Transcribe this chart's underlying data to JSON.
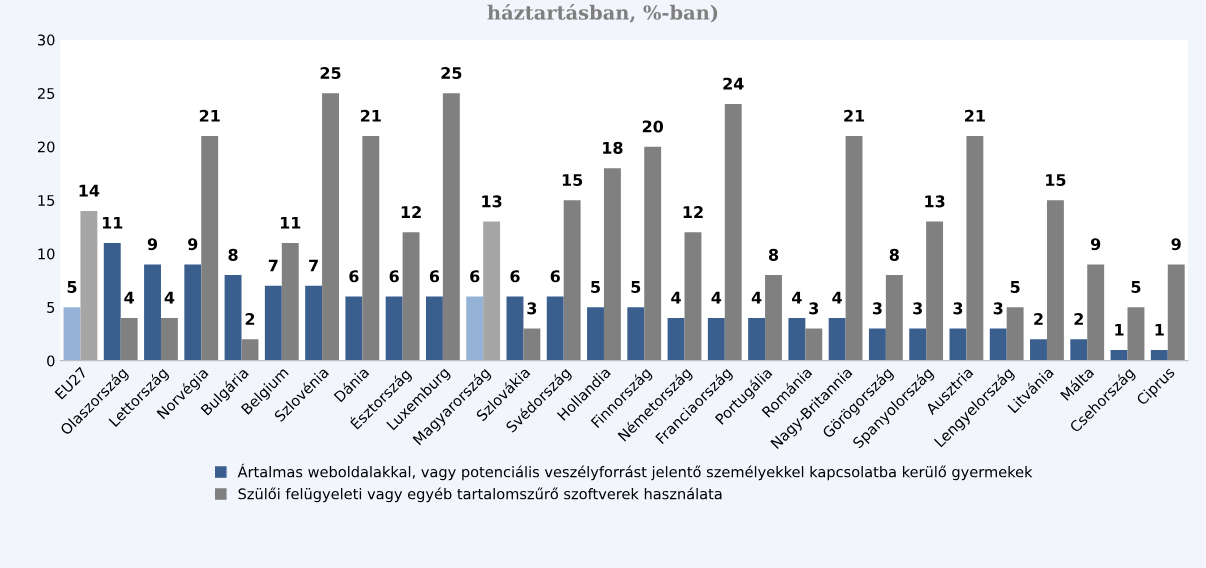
{
  "chart_data": {
    "type": "bar",
    "title": "háztartásban, %-ban)",
    "categories": [
      "EU27",
      "Olaszország",
      "Lettország",
      "Norvégia",
      "Bulgária",
      "Belgium",
      "Szlovénia",
      "Dánia",
      "Észtország",
      "Luxemburg",
      "Magyarország",
      "Szlovákia",
      "Svédország",
      "Hollandia",
      "Finnország",
      "Németország",
      "Franciaország",
      "Portugália",
      "Románia",
      "Nagy-Britannia",
      "Görögország",
      "Spanyolország",
      "Ausztria",
      "Lengyelország",
      "Litvánia",
      "Málta",
      "Csehország",
      "Ciprus"
    ],
    "series": [
      {
        "name": "Ártalmas weboldalakkal, vagy potenciális veszélyforrást jelentő személyekkel kapcsolatba kerülő gyermekek",
        "color": "#3a5f8f",
        "colors": [
          "#95b3d7",
          "#3a5f8f",
          "#3a5f8f",
          "#3a5f8f",
          "#3a5f8f",
          "#3a5f8f",
          "#3a5f8f",
          "#3a5f8f",
          "#3a5f8f",
          "#3a5f8f",
          "#95b3d7",
          "#3a5f8f",
          "#3a5f8f",
          "#3a5f8f",
          "#3a5f8f",
          "#3a5f8f",
          "#3a5f8f",
          "#3a5f8f",
          "#3a5f8f",
          "#3a5f8f",
          "#3a5f8f",
          "#3a5f8f",
          "#3a5f8f",
          "#3a5f8f",
          "#3a5f8f",
          "#3a5f8f",
          "#3a5f8f",
          "#3a5f8f"
        ],
        "values": [
          5,
          11,
          9,
          9,
          8,
          7,
          7,
          6,
          6,
          6,
          6,
          6,
          6,
          5,
          5,
          4,
          4,
          4,
          4,
          4,
          3,
          3,
          3,
          3,
          2,
          2,
          1,
          1
        ]
      },
      {
        "name": "Szülői felügyeleti vagy egyéb tartalomszűrő szoftverek használata",
        "color": "#808080",
        "colors": [
          "#a6a6a6",
          "#808080",
          "#808080",
          "#808080",
          "#808080",
          "#808080",
          "#808080",
          "#808080",
          "#808080",
          "#808080",
          "#a6a6a6",
          "#808080",
          "#808080",
          "#808080",
          "#808080",
          "#808080",
          "#808080",
          "#808080",
          "#808080",
          "#808080",
          "#808080",
          "#808080",
          "#808080",
          "#808080",
          "#808080",
          "#808080",
          "#808080",
          "#808080"
        ],
        "values": [
          14,
          4,
          4,
          21,
          2,
          11,
          25,
          21,
          12,
          25,
          13,
          3,
          15,
          18,
          20,
          12,
          24,
          8,
          3,
          21,
          8,
          13,
          21,
          5,
          15,
          9,
          5,
          9
        ]
      }
    ],
    "ylim": [
      0,
      30
    ],
    "yticks": [
      0,
      5,
      10,
      15,
      20,
      25,
      30
    ],
    "grid": false,
    "legend": "bottom",
    "data_labels": true
  }
}
